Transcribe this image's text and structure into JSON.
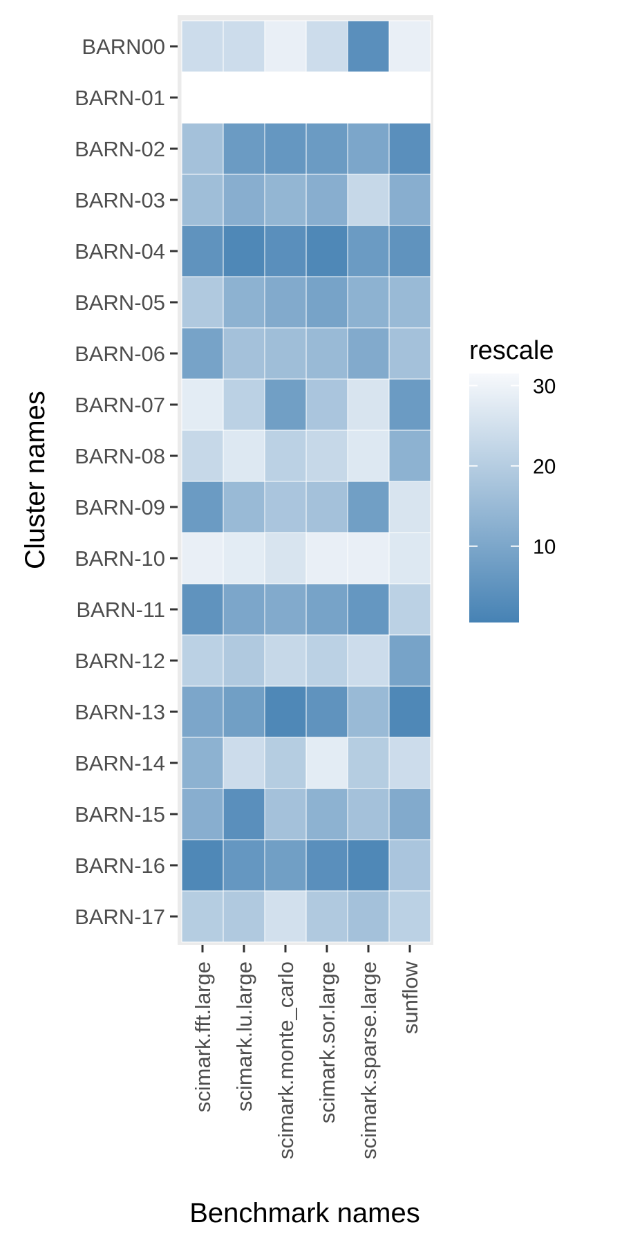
{
  "chart_data": {
    "type": "heatmap",
    "xlabel": "Benchmark names",
    "ylabel": "Cluster names",
    "x_categories": [
      "scimark.fft.large",
      "scimark.lu.large",
      "scimark.monte_carlo",
      "scimark.sor.large",
      "scimark.sparse.large",
      "sunflow"
    ],
    "y_categories": [
      "BARN00",
      "BARN-01",
      "BARN-02",
      "BARN-03",
      "BARN-04",
      "BARN-05",
      "BARN-06",
      "BARN-07",
      "BARN-08",
      "BARN-09",
      "BARN-10",
      "BARN-11",
      "BARN-12",
      "BARN-13",
      "BARN-14",
      "BARN-15",
      "BARN-16",
      "BARN-17"
    ],
    "values": [
      [
        24,
        24,
        29,
        24,
        4,
        29
      ],
      [
        null,
        null,
        null,
        null,
        null,
        null
      ],
      [
        17,
        7,
        6,
        7,
        10,
        4
      ],
      [
        16,
        12,
        14,
        12,
        23,
        12
      ],
      [
        5,
        2,
        4,
        2,
        7,
        5
      ],
      [
        19,
        13,
        11,
        9,
        13,
        15
      ],
      [
        9,
        17,
        16,
        15,
        11,
        17
      ],
      [
        28,
        21,
        8,
        18,
        26,
        7
      ],
      [
        23,
        27,
        21,
        23,
        27,
        13
      ],
      [
        7,
        15,
        18,
        17,
        8,
        26
      ],
      [
        29,
        28,
        26,
        29,
        29,
        27
      ],
      [
        5,
        10,
        11,
        9,
        6,
        21
      ],
      [
        21,
        19,
        23,
        21,
        24,
        9
      ],
      [
        10,
        8,
        2,
        5,
        15,
        2
      ],
      [
        13,
        24,
        20,
        28,
        20,
        24
      ],
      [
        12,
        4,
        17,
        13,
        17,
        11
      ],
      [
        2,
        6,
        8,
        4,
        2,
        18
      ],
      [
        20,
        19,
        25,
        19,
        17,
        21
      ]
    ],
    "colorbar": {
      "title": "rescale",
      "ticks": [
        10,
        20,
        30
      ],
      "min": 0.5,
      "max": 31.5,
      "low_color": "#4682b4",
      "high_color": "#f7f9fc"
    },
    "panel_background": "#ebebeb",
    "missing_color": "#ffffff"
  }
}
